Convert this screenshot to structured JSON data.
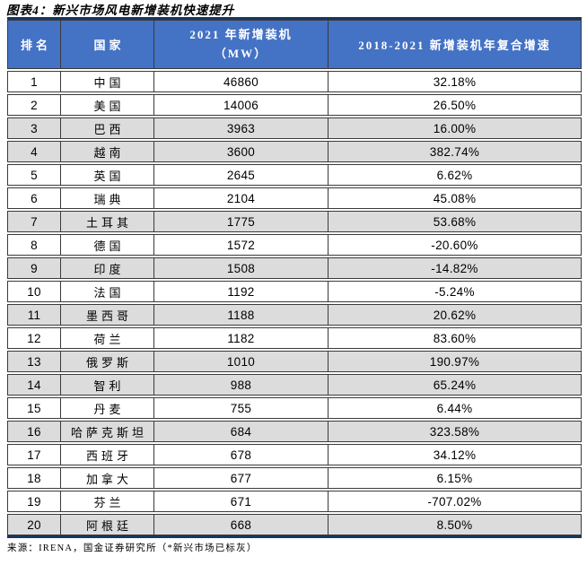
{
  "title": "图表4：新兴市场风电新增装机快速提升",
  "header": {
    "col_rank": "排名",
    "col_country": "国家",
    "col_mw_line1": "2021 年新增装机",
    "col_mw_line2": "（MW）",
    "col_cagr": "2018-2021  新增装机年复合增速"
  },
  "footer": {
    "source": "来源：IRENA，国金证券研究所（*新兴市场已标灰）"
  },
  "colors": {
    "header_bg": "#4472C4",
    "header_text": "#FFFFFF",
    "highlight_row_bg": "#DCDCDC",
    "rule": "#17375E",
    "cell_border": "#3A3A3A"
  },
  "chart_data": {
    "type": "table",
    "title": "图表4：新兴市场风电新增装机快速提升",
    "columns": [
      "排名",
      "国家",
      "2021年新增装机（MW）",
      "2018-2021 新增装机年复合增速"
    ],
    "note": "*新兴市场已标灰（灰色底纹行为新兴市场）",
    "rows": [
      {
        "rank": 1,
        "country": "中国",
        "mw_2021": 46860,
        "cagr_2018_2021": "32.18%",
        "emerging_market_gray": false
      },
      {
        "rank": 2,
        "country": "美国",
        "mw_2021": 14006,
        "cagr_2018_2021": "26.50%",
        "emerging_market_gray": false
      },
      {
        "rank": 3,
        "country": "巴西",
        "mw_2021": 3963,
        "cagr_2018_2021": "16.00%",
        "emerging_market_gray": true
      },
      {
        "rank": 4,
        "country": "越南",
        "mw_2021": 3600,
        "cagr_2018_2021": "382.74%",
        "emerging_market_gray": true
      },
      {
        "rank": 5,
        "country": "英国",
        "mw_2021": 2645,
        "cagr_2018_2021": "6.62%",
        "emerging_market_gray": false
      },
      {
        "rank": 6,
        "country": "瑞典",
        "mw_2021": 2104,
        "cagr_2018_2021": "45.08%",
        "emerging_market_gray": false
      },
      {
        "rank": 7,
        "country": "土耳其",
        "mw_2021": 1775,
        "cagr_2018_2021": "53.68%",
        "emerging_market_gray": true
      },
      {
        "rank": 8,
        "country": "德国",
        "mw_2021": 1572,
        "cagr_2018_2021": "-20.60%",
        "emerging_market_gray": false
      },
      {
        "rank": 9,
        "country": "印度",
        "mw_2021": 1508,
        "cagr_2018_2021": "-14.82%",
        "emerging_market_gray": true
      },
      {
        "rank": 10,
        "country": "法国",
        "mw_2021": 1192,
        "cagr_2018_2021": "-5.24%",
        "emerging_market_gray": false
      },
      {
        "rank": 11,
        "country": "墨西哥",
        "mw_2021": 1188,
        "cagr_2018_2021": "20.62%",
        "emerging_market_gray": true
      },
      {
        "rank": 12,
        "country": "荷兰",
        "mw_2021": 1182,
        "cagr_2018_2021": "83.60%",
        "emerging_market_gray": false
      },
      {
        "rank": 13,
        "country": "俄罗斯",
        "mw_2021": 1010,
        "cagr_2018_2021": "190.97%",
        "emerging_market_gray": true
      },
      {
        "rank": 14,
        "country": "智利",
        "mw_2021": 988,
        "cagr_2018_2021": "65.24%",
        "emerging_market_gray": true
      },
      {
        "rank": 15,
        "country": "丹麦",
        "mw_2021": 755,
        "cagr_2018_2021": "6.44%",
        "emerging_market_gray": false
      },
      {
        "rank": 16,
        "country": "哈萨克斯坦",
        "mw_2021": 684,
        "cagr_2018_2021": "323.58%",
        "emerging_market_gray": true
      },
      {
        "rank": 17,
        "country": "西班牙",
        "mw_2021": 678,
        "cagr_2018_2021": "34.12%",
        "emerging_market_gray": false
      },
      {
        "rank": 18,
        "country": "加拿大",
        "mw_2021": 677,
        "cagr_2018_2021": "6.15%",
        "emerging_market_gray": false
      },
      {
        "rank": 19,
        "country": "芬兰",
        "mw_2021": 671,
        "cagr_2018_2021": "-707.02%",
        "emerging_market_gray": false
      },
      {
        "rank": 20,
        "country": "阿根廷",
        "mw_2021": 668,
        "cagr_2018_2021": "8.50%",
        "emerging_market_gray": true
      }
    ]
  }
}
